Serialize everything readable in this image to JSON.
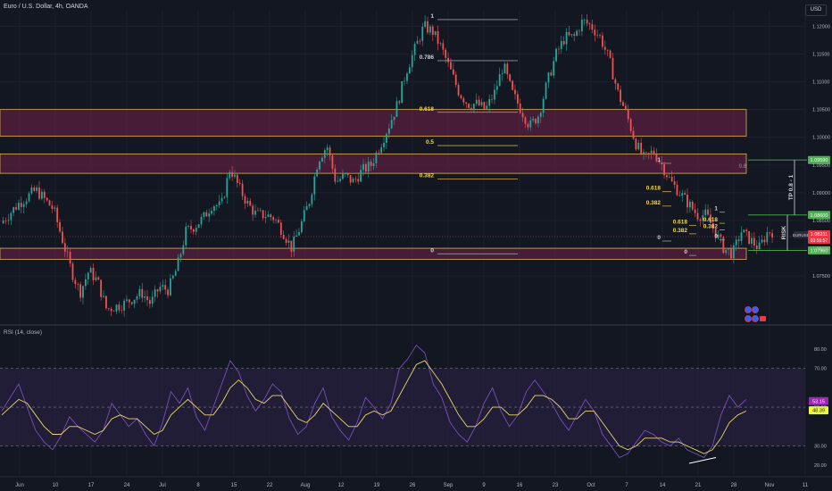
{
  "header": {
    "symbol": "Euro / U.S. Dollar, 4h, OANDA",
    "currency": "USD"
  },
  "rsi_header": {
    "label": "RSI (14, close)"
  },
  "colors": {
    "background": "#131722",
    "bull": "#26a69a",
    "bear": "#ef5350",
    "zone_fill": "#5a1f3e",
    "zone_border": "#d8b15a",
    "fib_label": "#f5d742",
    "rsi_line": "#7e57c2",
    "rsi_ma": "#e8d66a",
    "rsi_band": "#2a2140",
    "green_level": "#4caf50",
    "price_tag": "#f23645",
    "rsi_tag": "#9c27b0",
    "rsi_ma_tag": "#eeff41"
  },
  "chart_data": [
    {
      "type": "candlestick",
      "title": "",
      "price_axis": {
        "ylim": [
          1.0665,
          1.1228
        ],
        "ticks": [
          "1.12000",
          "1.11500",
          "1.11000",
          "1.10500",
          "1.10000",
          "1.09500",
          "1.09000",
          "1.08500",
          "1.08000",
          "1.07500"
        ]
      },
      "time_axis": {
        "ticks": [
          "Jun",
          "10",
          "17",
          "24",
          "Jul",
          "8",
          "15",
          "22",
          "Aug",
          "12",
          "19",
          "26",
          "Sep",
          "9",
          "16",
          "23",
          "Oct",
          "7",
          "14",
          "21",
          "28",
          "Nov",
          "11"
        ]
      },
      "price_path": [
        [
          0,
          1.0845
        ],
        [
          2,
          1.088
        ],
        [
          4,
          1.0905
        ],
        [
          6,
          1.087
        ],
        [
          8,
          1.076
        ],
        [
          9,
          1.072
        ],
        [
          10,
          1.076
        ],
        [
          11,
          1.074
        ],
        [
          12,
          1.069
        ],
        [
          14,
          1.07
        ],
        [
          16,
          1.072
        ],
        [
          17,
          1.07
        ],
        [
          18,
          1.073
        ],
        [
          19,
          1.0725
        ],
        [
          20,
          1.0765
        ],
        [
          21,
          1.083
        ],
        [
          22,
          1.084
        ],
        [
          23,
          1.0855
        ],
        [
          24,
          1.088
        ],
        [
          25,
          1.0875
        ],
        [
          26,
          1.0945
        ],
        [
          27,
          1.091
        ],
        [
          28,
          1.088
        ],
        [
          29,
          1.086
        ],
        [
          30,
          1.086
        ],
        [
          31,
          1.0855
        ],
        [
          32,
          1.083
        ],
        [
          33,
          1.08
        ],
        [
          34,
          1.084
        ],
        [
          35,
          1.0885
        ],
        [
          36,
          1.096
        ],
        [
          37,
          1.0985
        ],
        [
          38,
          1.092
        ],
        [
          39,
          1.093
        ],
        [
          40,
          1.092
        ],
        [
          41,
          1.094
        ],
        [
          42,
          1.095
        ],
        [
          43,
          1.0985
        ],
        [
          44,
          1.102
        ],
        [
          45,
          1.106
        ],
        [
          46,
          1.112
        ],
        [
          47,
          1.116
        ],
        [
          48,
          1.12
        ],
        [
          49,
          1.119
        ],
        [
          50,
          1.116
        ],
        [
          51,
          1.112
        ],
        [
          52,
          1.108
        ],
        [
          53,
          1.106
        ],
        [
          54,
          1.106
        ],
        [
          55,
          1.105
        ],
        [
          56,
          1.108
        ],
        [
          57,
          1.113
        ],
        [
          58,
          1.108
        ],
        [
          59,
          1.105
        ],
        [
          60,
          1.102
        ],
        [
          61,
          1.104
        ],
        [
          62,
          1.11
        ],
        [
          63,
          1.115
        ],
        [
          64,
          1.118
        ],
        [
          65,
          1.118
        ],
        [
          66,
          1.121
        ],
        [
          67,
          1.12
        ],
        [
          68,
          1.118
        ],
        [
          69,
          1.114
        ],
        [
          70,
          1.108
        ],
        [
          71,
          1.104
        ],
        [
          72,
          1.099
        ],
        [
          73,
          1.096
        ],
        [
          74,
          1.0975
        ],
        [
          75,
          1.095
        ],
        [
          76,
          1.092
        ],
        [
          77,
          1.09
        ],
        [
          78,
          1.088
        ],
        [
          79,
          1.086
        ],
        [
          80,
          1.086
        ],
        [
          81,
          1.083
        ],
        [
          82,
          1.08
        ],
        [
          83,
          1.079
        ],
        [
          84,
          1.083
        ],
        [
          85,
          1.0815
        ],
        [
          86,
          1.08
        ],
        [
          87,
          1.083
        ]
      ],
      "zones": [
        {
          "from": 1.1002,
          "to": 1.105
        },
        {
          "from": 1.0935,
          "to": 1.097
        },
        {
          "from": 1.078,
          "to": 1.08
        }
      ],
      "fib_left": {
        "levels": [
          {
            "label": "1",
            "price": 1.1212
          },
          {
            "label": "0.786",
            "price": 1.1138
          },
          {
            "label": "0.618",
            "price": 1.1045
          },
          {
            "label": "0.5",
            "price": 1.0985
          },
          {
            "label": "0.382",
            "price": 1.0925
          },
          {
            "label": "0",
            "price": 1.079
          }
        ]
      },
      "fib_right": {
        "levels": [
          {
            "label": "1",
            "price": 1.0953
          },
          {
            "label": "0.618",
            "price": 1.0902
          },
          {
            "label": "0.382",
            "price": 1.0876
          },
          {
            "label": "0",
            "price": 1.0813
          }
        ]
      },
      "fib_small": {
        "levels": [
          {
            "label": "0.618",
            "price": 1.0841
          },
          {
            "label": "0.382",
            "price": 1.0826
          },
          {
            "label": "0",
            "price": 1.0787
          }
        ]
      },
      "fib_mini": {
        "levels": [
          {
            "label": "1",
            "price": 1.0865
          },
          {
            "label": "0.618",
            "price": 1.0845
          },
          {
            "label": "0.382",
            "price": 1.0833
          },
          {
            "label": "0",
            "price": 1.0815
          }
        ]
      },
      "right_label": "0.8",
      "green_levels": [
        {
          "label": "1.09590",
          "price": 1.0959
        },
        {
          "label": "1.08600",
          "price": 1.086
        },
        {
          "label": "1.07960",
          "price": 1.0796
        }
      ],
      "price_tag": {
        "symbol": "EURUSD",
        "value": "1.08211",
        "countdown": "03:55:57",
        "price": 1.0821
      },
      "tp_label": "TP 0.8 - 1",
      "risk_label": "RISK"
    },
    {
      "type": "line",
      "title": "RSI (14, close)",
      "ylim": [
        15,
        86
      ],
      "y_ticks": [
        80,
        70,
        50,
        30,
        20
      ],
      "band": [
        30,
        70
      ],
      "values": [
        48,
        55,
        62,
        50,
        38,
        32,
        28,
        35,
        45,
        40,
        36,
        32,
        38,
        52,
        46,
        40,
        44,
        36,
        30,
        42,
        58,
        52,
        60,
        45,
        38,
        50,
        62,
        74,
        68,
        56,
        48,
        54,
        62,
        58,
        44,
        36,
        40,
        52,
        60,
        45,
        38,
        33,
        42,
        55,
        50,
        44,
        52,
        70,
        75,
        82,
        78,
        62,
        55,
        42,
        36,
        32,
        40,
        52,
        60,
        48,
        40,
        46,
        58,
        64,
        58,
        52,
        44,
        38,
        46,
        54,
        48,
        36,
        30,
        24,
        26,
        32,
        38,
        36,
        32,
        30,
        34,
        28,
        26,
        24,
        30,
        46,
        56,
        50,
        54
      ],
      "ma_values": [
        46,
        50,
        54,
        52,
        46,
        40,
        36,
        36,
        40,
        40,
        38,
        36,
        38,
        44,
        46,
        44,
        44,
        40,
        36,
        38,
        46,
        50,
        54,
        50,
        46,
        46,
        52,
        60,
        64,
        60,
        54,
        52,
        56,
        56,
        50,
        44,
        42,
        46,
        52,
        48,
        44,
        40,
        40,
        46,
        48,
        46,
        48,
        56,
        64,
        72,
        74,
        68,
        62,
        54,
        46,
        40,
        40,
        44,
        50,
        50,
        46,
        46,
        50,
        56,
        56,
        54,
        50,
        44,
        44,
        48,
        48,
        42,
        36,
        30,
        28,
        30,
        34,
        34,
        34,
        32,
        32,
        30,
        28,
        26,
        28,
        34,
        42,
        46,
        48
      ],
      "rsi_tag": "53.15",
      "ma_tag": "48.39"
    }
  ]
}
